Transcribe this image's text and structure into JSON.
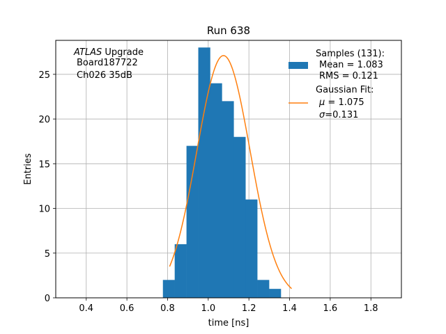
{
  "chart_data": {
    "type": "bar",
    "title": "Run 638",
    "xlabel": "time [ns]",
    "ylabel": "Entries",
    "xlim": [
      0.25,
      1.95
    ],
    "ylim": [
      0,
      28.8
    ],
    "xticks": [
      "0.4",
      "0.6",
      "0.8",
      "1.0",
      "1.2",
      "1.4",
      "1.6",
      "1.8"
    ],
    "xtick_values": [
      0.4,
      0.6,
      0.8,
      1.0,
      1.2,
      1.4,
      1.6,
      1.8
    ],
    "yticks": [
      "0",
      "5",
      "10",
      "15",
      "20",
      "25"
    ],
    "ytick_values": [
      0,
      5,
      10,
      15,
      20,
      25
    ],
    "grid": true,
    "legend_position": "top-right",
    "annotation": {
      "experiment": "ATLAS",
      "experiment_suffix": " Upgrade",
      "line2": "Board187722",
      "line3": "Ch026 35dB"
    },
    "histogram": {
      "bin_edges": [
        0.777,
        0.835,
        0.893,
        0.951,
        1.009,
        1.067,
        1.125,
        1.183,
        1.241,
        1.299,
        1.357,
        1.415,
        1.473
      ],
      "counts": [
        2,
        6,
        17,
        28,
        24,
        22,
        18,
        11,
        2,
        1,
        0,
        0
      ],
      "color": "#1f77b4",
      "legend": {
        "title": "Samples (131):",
        "line2": "Mean = 1.083",
        "line3": "RMS = 0.121"
      }
    },
    "fit": {
      "mu": 1.075,
      "sigma": 0.131,
      "amplitude": 27.1,
      "x_range": [
        0.81,
        1.41
      ],
      "color": "#ff7f0e",
      "legend": {
        "title": "Gaussian Fit:",
        "line2_sym": "μ",
        "line2_val": " = 1.075",
        "line3_sym": "σ",
        "line3_val": "=0.131"
      }
    }
  }
}
